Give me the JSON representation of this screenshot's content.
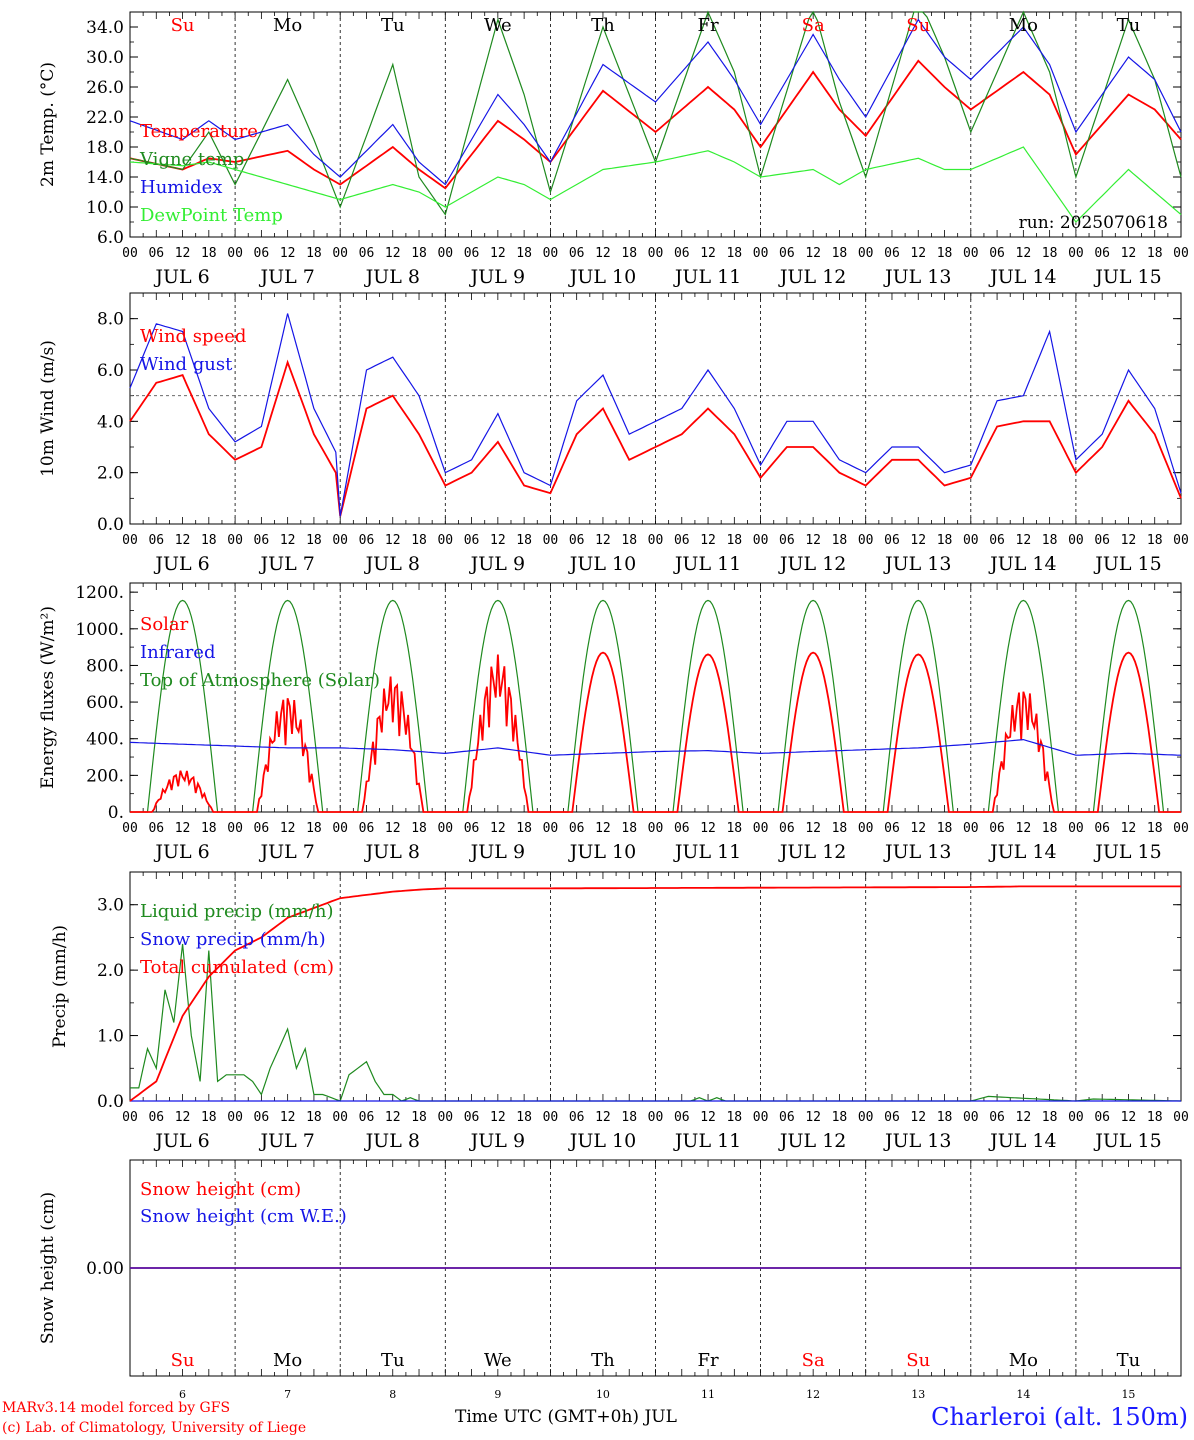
{
  "colors": {
    "red": "#ff0000",
    "darkgreen": "#1f8a1f",
    "lightgreen": "#33ee33",
    "blue": "#1515e6",
    "black": "#000000"
  },
  "days": {
    "dates": [
      "6",
      "7",
      "8",
      "9",
      "10",
      "11",
      "12",
      "13",
      "14",
      "15"
    ],
    "weekdays": [
      "Su",
      "Mo",
      "Tu",
      "We",
      "Th",
      "Fr",
      "Sa",
      "Su",
      "Mo",
      "Tu"
    ],
    "weekday_colors": [
      "red",
      "black",
      "black",
      "black",
      "black",
      "black",
      "red",
      "red",
      "black",
      "black"
    ],
    "hour_ticks": [
      "00",
      "06",
      "12",
      "18"
    ],
    "month": "JUL"
  },
  "chart_data": [
    {
      "type": "line",
      "ylabel": "2m Temp. (°C)",
      "ylim": [
        6,
        36
      ],
      "yticks": [
        "6.0",
        "10.0",
        "14.0",
        "18.0",
        "22.0",
        "26.0",
        "30.0",
        "34.0"
      ],
      "ytick_values": [
        6,
        10,
        14,
        18,
        22,
        26,
        30,
        34
      ],
      "annotation": "run: 2025070618",
      "legend": [
        "Temperature",
        "Vigne temp",
        "Humidex",
        "DewPoint Temp"
      ],
      "x_unit": "hours since JUL 6 00 UTC",
      "series": [
        {
          "name": "Temperature",
          "color": "red",
          "x": [
            0,
            12,
            18,
            24,
            36,
            42,
            48,
            60,
            66,
            72,
            84,
            90,
            96,
            108,
            120,
            132,
            138,
            144,
            156,
            162,
            168,
            180,
            186,
            192,
            204,
            210,
            216,
            228,
            234,
            240
          ],
          "y": [
            16.5,
            15,
            16.5,
            16,
            17.5,
            15,
            13,
            18,
            15,
            12.5,
            21.5,
            19,
            16,
            25.5,
            20,
            26,
            23,
            18,
            28,
            23,
            19.5,
            29.5,
            26,
            23,
            28,
            25,
            17,
            25,
            23,
            19
          ]
        },
        {
          "name": "Vigne temp",
          "color": "darkgreen",
          "x": [
            0,
            12,
            18,
            24,
            36,
            42,
            48,
            60,
            66,
            72,
            84,
            90,
            96,
            108,
            120,
            132,
            138,
            144,
            156,
            162,
            168,
            180,
            186,
            192,
            204,
            210,
            216,
            228,
            234,
            240
          ],
          "y": [
            16.5,
            15,
            20,
            13,
            27,
            19,
            10,
            29,
            14,
            9,
            35,
            25,
            12,
            34,
            16,
            36,
            28,
            14,
            37,
            24,
            14,
            38,
            30,
            20,
            36,
            28,
            14,
            35,
            27,
            14
          ]
        },
        {
          "name": "Humidex",
          "color": "blue",
          "x": [
            0,
            12,
            18,
            24,
            36,
            42,
            48,
            60,
            66,
            72,
            84,
            90,
            96,
            108,
            120,
            132,
            138,
            144,
            156,
            162,
            168,
            180,
            186,
            192,
            204,
            210,
            216,
            228,
            234,
            240
          ],
          "y": [
            21.5,
            19,
            21.5,
            19,
            21,
            17,
            14,
            21,
            16,
            13,
            25,
            21,
            16,
            29,
            24,
            32,
            27,
            21,
            33,
            27,
            22,
            35,
            30,
            27,
            34,
            29,
            20,
            30,
            27,
            20
          ]
        },
        {
          "name": "DewPoint Temp",
          "color": "lightgreen",
          "x": [
            0,
            12,
            18,
            24,
            36,
            42,
            48,
            60,
            66,
            72,
            84,
            90,
            96,
            108,
            120,
            132,
            138,
            144,
            156,
            162,
            168,
            180,
            186,
            192,
            204,
            210,
            216,
            228,
            234,
            240
          ],
          "y": [
            16,
            15.5,
            16,
            15,
            13,
            12,
            11,
            13,
            12,
            10,
            14,
            13,
            11,
            15,
            16,
            17.5,
            16,
            14,
            15,
            13,
            15,
            16.5,
            15,
            15,
            18,
            13,
            8,
            15,
            12,
            9
          ]
        }
      ]
    },
    {
      "type": "line",
      "ylabel": "10m Wind (m/s)",
      "ylim": [
        0,
        9
      ],
      "yticks": [
        "0.0",
        "2.0",
        "4.0",
        "6.0",
        "8.0"
      ],
      "ytick_values": [
        0,
        2,
        4,
        6,
        8
      ],
      "reference_line": 5,
      "legend": [
        "Wind speed",
        "Wind gust"
      ],
      "x_unit": "hours since JUL 6 00 UTC",
      "series": [
        {
          "name": "Wind speed",
          "color": "red",
          "x": [
            0,
            6,
            12,
            18,
            24,
            30,
            36,
            42,
            47,
            48,
            54,
            60,
            66,
            72,
            78,
            84,
            90,
            96,
            102,
            108,
            114,
            120,
            126,
            132,
            138,
            144,
            150,
            156,
            162,
            168,
            174,
            180,
            186,
            192,
            198,
            204,
            210,
            216,
            222,
            228,
            234,
            240
          ],
          "y": [
            4,
            5.5,
            5.8,
            3.5,
            2.5,
            3,
            6.3,
            3.5,
            2,
            0.3,
            4.5,
            5,
            3.5,
            1.5,
            2,
            3.2,
            1.5,
            1.2,
            3.5,
            4.5,
            2.5,
            3,
            3.5,
            4.5,
            3.5,
            1.8,
            3,
            3,
            2,
            1.5,
            2.5,
            2.5,
            1.5,
            1.8,
            3.8,
            4,
            4,
            2,
            3,
            4.8,
            3.5,
            1
          ]
        },
        {
          "name": "Wind gust",
          "color": "blue",
          "x": [
            0,
            6,
            12,
            18,
            24,
            30,
            36,
            42,
            47,
            48,
            54,
            60,
            66,
            72,
            78,
            84,
            90,
            96,
            102,
            108,
            114,
            120,
            126,
            132,
            138,
            144,
            150,
            156,
            162,
            168,
            174,
            180,
            186,
            192,
            198,
            204,
            210,
            216,
            222,
            228,
            234,
            240
          ],
          "y": [
            5.3,
            7.8,
            7.5,
            4.5,
            3.2,
            3.8,
            8.2,
            4.5,
            2.8,
            0.3,
            6,
            6.5,
            5,
            2,
            2.5,
            4.3,
            2,
            1.5,
            4.8,
            5.8,
            3.5,
            4,
            4.5,
            6,
            4.5,
            2.3,
            4,
            4,
            2.5,
            2,
            3,
            3,
            2,
            2.3,
            4.8,
            5,
            7.5,
            2.5,
            3.5,
            6,
            4.5,
            1.2
          ]
        }
      ]
    },
    {
      "type": "line",
      "ylabel": "Energy fluxes (W/m²)",
      "ylim": [
        0,
        1250
      ],
      "yticks": [
        "0.",
        "200.",
        "400.",
        "600.",
        "800.",
        "1000.",
        "1200."
      ],
      "ytick_values": [
        0,
        200,
        400,
        600,
        800,
        1000,
        1200
      ],
      "legend": [
        "Solar",
        "Infrared",
        "Top of Atmosphere (Solar)"
      ],
      "x_unit": "hours since JUL 6 00 UTC",
      "series": [
        {
          "name": "Top of Atmosphere (Solar)",
          "color": "darkgreen",
          "peak": 1155,
          "sunrise_hour": 4,
          "sunset_hour": 20
        },
        {
          "name": "Solar",
          "color": "red",
          "daily_peak": [
            230,
            650,
            750,
            860,
            870,
            860,
            870,
            860,
            690,
            870
          ],
          "sunrise_hour": 5,
          "sunset_hour": 19
        },
        {
          "name": "Infrared",
          "color": "blue",
          "x": [
            0,
            12,
            24,
            36,
            48,
            60,
            72,
            84,
            96,
            108,
            120,
            132,
            144,
            156,
            168,
            180,
            192,
            204,
            216,
            228,
            240
          ],
          "y": [
            380,
            370,
            360,
            350,
            350,
            340,
            320,
            350,
            310,
            320,
            330,
            335,
            320,
            330,
            340,
            350,
            370,
            395,
            310,
            320,
            310
          ]
        }
      ]
    },
    {
      "type": "line",
      "ylabel": "Precip (mm/h)",
      "ylim": [
        0,
        3.5
      ],
      "yticks": [
        "0.0",
        "1.0",
        "2.0",
        "3.0"
      ],
      "ytick_values": [
        0,
        1,
        2,
        3
      ],
      "legend": [
        "Liquid precip (mm/h)",
        "Snow precip (mm/h)",
        "Total cumulated (cm)"
      ],
      "x_unit": "hours since JUL 6 00 UTC",
      "series": [
        {
          "name": "Liquid precip (mm/h)",
          "color": "darkgreen",
          "x": [
            0,
            2,
            4,
            6,
            8,
            10,
            12,
            14,
            16,
            18,
            20,
            22,
            24,
            26,
            28,
            30,
            32,
            34,
            36,
            38,
            40,
            42,
            44,
            46,
            48,
            50,
            52,
            54,
            56,
            58,
            60,
            62,
            64,
            66,
            68,
            70,
            72,
            120,
            124,
            128,
            130,
            132,
            134,
            136,
            140,
            192,
            196,
            216,
            220,
            240
          ],
          "y": [
            0.2,
            0.2,
            0.8,
            0.5,
            1.7,
            1.2,
            2.4,
            1.0,
            0.3,
            2.3,
            0.3,
            0.4,
            0.4,
            0.4,
            0.3,
            0.1,
            0.5,
            0.8,
            1.1,
            0.5,
            0.8,
            0.1,
            0.1,
            0.05,
            0,
            0.4,
            0.5,
            0.6,
            0.3,
            0.1,
            0.1,
            0,
            0.05,
            0,
            0,
            0,
            0,
            0,
            0,
            0,
            0.05,
            0,
            0.05,
            0,
            0,
            0,
            0.07,
            0,
            0.03,
            0
          ]
        },
        {
          "name": "Snow precip (mm/h)",
          "color": "blue",
          "x": [
            0,
            240
          ],
          "y": [
            0,
            0
          ]
        },
        {
          "name": "Total cumulated (cm)",
          "color": "red",
          "x": [
            0,
            6,
            12,
            18,
            24,
            30,
            36,
            42,
            48,
            54,
            60,
            66,
            72,
            96,
            144,
            192,
            204,
            240
          ],
          "y": [
            0,
            0.3,
            1.3,
            1.9,
            2.3,
            2.5,
            2.8,
            2.95,
            3.1,
            3.15,
            3.2,
            3.23,
            3.25,
            3.25,
            3.26,
            3.27,
            3.28,
            3.28
          ]
        }
      ]
    },
    {
      "type": "line",
      "ylabel": "Snow height (cm)",
      "ylim": [
        -1,
        1
      ],
      "yticks": [
        "0.00"
      ],
      "ytick_values": [
        0
      ],
      "legend": [
        "Snow height (cm)",
        "Snow height (cm W.E.)"
      ],
      "x_unit": "hours since JUL 6 00 UTC",
      "series": [
        {
          "name": "Snow height (cm)",
          "color": "red",
          "x": [
            0,
            240
          ],
          "y": [
            0,
            0
          ]
        },
        {
          "name": "Snow height (cm W.E.)",
          "color": "blue",
          "x": [
            0,
            240
          ],
          "y": [
            0,
            0
          ]
        }
      ]
    }
  ],
  "footer": {
    "model": "MARv3.14 model forced by GFS",
    "credit": "(c) Lab. of Climatology, University of Liege",
    "xlabel": "Time UTC (GMT+0h) JUL",
    "station": "Charleroi (alt. 150m)"
  }
}
